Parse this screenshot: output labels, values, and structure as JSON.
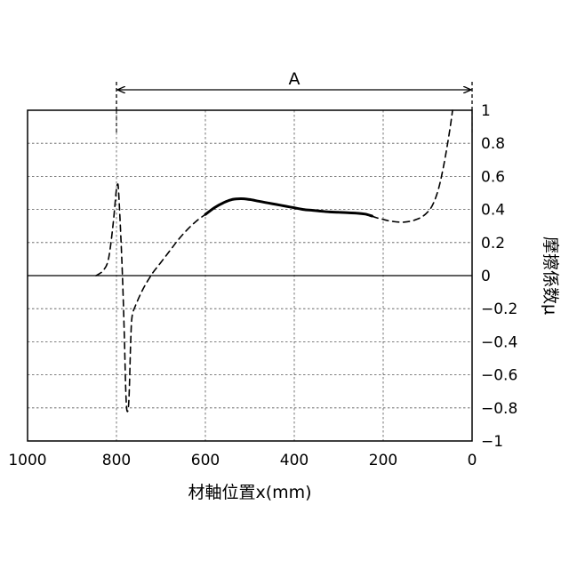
{
  "chart_data": {
    "type": "line",
    "title": "",
    "xlabel": "材軸位置x(mm)",
    "ylabel": "摩擦係数μ",
    "xlim": [
      1000,
      0
    ],
    "ylim": [
      -1,
      1
    ],
    "x_reversed": true,
    "grid": true,
    "x_ticks": [
      {
        "value": 1000,
        "label": "1000"
      },
      {
        "value": 800,
        "label": "800"
      },
      {
        "value": 600,
        "label": "600"
      },
      {
        "value": 400,
        "label": "400"
      },
      {
        "value": 200,
        "label": "200"
      },
      {
        "value": 0,
        "label": "0"
      }
    ],
    "y_ticks": [
      {
        "value": 1,
        "label": "1"
      },
      {
        "value": 0.8,
        "label": "0.8"
      },
      {
        "value": 0.6,
        "label": "0.6"
      },
      {
        "value": 0.4,
        "label": "0.4"
      },
      {
        "value": 0.2,
        "label": "0.2"
      },
      {
        "value": 0,
        "label": "0"
      },
      {
        "value": -0.2,
        "label": "−0.2"
      },
      {
        "value": -0.4,
        "label": "−0.4"
      },
      {
        "value": -0.6,
        "label": "−0.6"
      },
      {
        "value": -0.8,
        "label": "−0.8"
      },
      {
        "value": -1,
        "label": "−1"
      }
    ],
    "range_annotation": {
      "label": "A",
      "from": 800,
      "to": 0
    },
    "series": [
      {
        "style": "dashed",
        "points": [
          [
            846,
            0
          ],
          [
            830,
            0.03
          ],
          [
            818,
            0.1
          ],
          [
            808,
            0.3
          ],
          [
            801,
            0.5
          ],
          [
            798,
            0.55
          ],
          [
            795,
            0.5
          ],
          [
            788,
            0.1
          ],
          [
            783,
            -0.3
          ],
          [
            779,
            -0.7
          ],
          [
            776,
            -0.82
          ],
          [
            772,
            -0.75
          ],
          [
            768,
            -0.4
          ],
          [
            765,
            -0.25
          ],
          [
            757,
            -0.18
          ],
          [
            740,
            -0.08
          ],
          [
            720,
            0.01
          ],
          [
            700,
            0.08
          ],
          [
            680,
            0.15
          ],
          [
            660,
            0.22
          ],
          [
            640,
            0.28
          ],
          [
            620,
            0.33
          ],
          [
            600,
            0.37
          ]
        ]
      },
      {
        "style": "solid",
        "points": [
          [
            600,
            0.37
          ],
          [
            580,
            0.41
          ],
          [
            560,
            0.44
          ],
          [
            540,
            0.46
          ],
          [
            520,
            0.465
          ],
          [
            500,
            0.46
          ],
          [
            480,
            0.45
          ],
          [
            460,
            0.44
          ],
          [
            440,
            0.43
          ],
          [
            420,
            0.42
          ],
          [
            400,
            0.41
          ],
          [
            380,
            0.4
          ],
          [
            360,
            0.395
          ],
          [
            340,
            0.39
          ],
          [
            320,
            0.385
          ],
          [
            300,
            0.383
          ],
          [
            280,
            0.38
          ],
          [
            260,
            0.378
          ],
          [
            240,
            0.372
          ],
          [
            225,
            0.36
          ]
        ]
      },
      {
        "style": "dashed",
        "points": [
          [
            225,
            0.36
          ],
          [
            215,
            0.35
          ],
          [
            200,
            0.34
          ],
          [
            185,
            0.33
          ],
          [
            170,
            0.325
          ],
          [
            155,
            0.323
          ],
          [
            140,
            0.328
          ],
          [
            125,
            0.34
          ],
          [
            110,
            0.36
          ],
          [
            95,
            0.4
          ],
          [
            85,
            0.45
          ],
          [
            75,
            0.53
          ],
          [
            65,
            0.65
          ],
          [
            55,
            0.8
          ],
          [
            48,
            0.92
          ],
          [
            44,
            1.0
          ]
        ]
      }
    ],
    "zero_line": true,
    "colors": {
      "line": "#000000",
      "grid": "#555555",
      "background": "#ffffff"
    }
  }
}
